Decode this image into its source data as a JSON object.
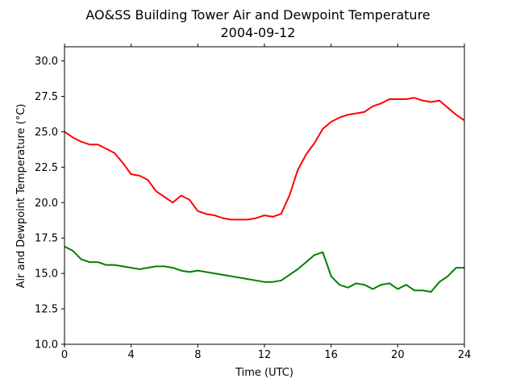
{
  "chart_data": {
    "type": "line",
    "title": "AO&SS Building Tower Air and Dewpoint Temperature",
    "subtitle": "2004-09-12",
    "xlabel": "Time (UTC)",
    "ylabel": "Air and Dewpoint Temperature (°C)",
    "xlim": [
      0,
      24
    ],
    "ylim": [
      10.0,
      31.0
    ],
    "xticks": [
      0,
      4,
      8,
      12,
      16,
      20,
      24
    ],
    "xtick_labels": [
      "0",
      "4",
      "8",
      "12",
      "16",
      "20",
      "24"
    ],
    "yticks": [
      10.0,
      12.5,
      15.0,
      17.5,
      20.0,
      22.5,
      25.0,
      27.5,
      30.0
    ],
    "ytick_labels": [
      "10.0",
      "12.5",
      "15.0",
      "17.5",
      "20.0",
      "22.5",
      "25.0",
      "27.5",
      "30.0"
    ],
    "grid": false,
    "legend": "none",
    "series": [
      {
        "color": "#ff0000",
        "x": [
          0,
          0.5,
          1,
          1.5,
          2,
          2.5,
          3,
          3.5,
          4,
          4.5,
          5,
          5.5,
          6,
          6.5,
          7,
          7.5,
          8,
          8.5,
          9,
          9.5,
          10,
          10.5,
          11,
          11.5,
          12,
          12.5,
          13,
          13.5,
          14,
          14.5,
          15,
          15.5,
          16,
          16.5,
          17,
          17.5,
          18,
          18.5,
          19,
          19.5,
          20,
          20.5,
          21,
          21.5,
          22,
          22.5,
          23,
          23.5,
          24
        ],
        "values": [
          25.0,
          24.6,
          24.3,
          24.1,
          24.1,
          23.8,
          23.5,
          22.8,
          22.0,
          21.9,
          21.6,
          20.8,
          20.4,
          20.0,
          20.5,
          20.2,
          19.4,
          19.2,
          19.1,
          18.9,
          18.8,
          18.8,
          18.8,
          18.9,
          19.1,
          19.0,
          19.2,
          20.5,
          22.3,
          23.4,
          24.2,
          25.2,
          25.7,
          26.0,
          26.2,
          26.3,
          26.4,
          26.8,
          27.0,
          27.3,
          27.3,
          27.3,
          27.4,
          27.2,
          27.1,
          27.2,
          26.7,
          26.2,
          25.8
        ]
      },
      {
        "color": "#008000",
        "x": [
          0,
          0.5,
          1,
          1.5,
          2,
          2.5,
          3,
          3.5,
          4,
          4.5,
          5,
          5.5,
          6,
          6.5,
          7,
          7.5,
          8,
          8.5,
          9,
          9.5,
          10,
          10.5,
          11,
          11.5,
          12,
          12.5,
          13,
          13.5,
          14,
          14.5,
          15,
          15.5,
          15.8,
          16,
          16.5,
          17,
          17.5,
          18,
          18.5,
          19,
          19.5,
          20,
          20.5,
          21,
          21.5,
          22,
          22.5,
          23,
          23.5,
          24
        ],
        "values": [
          16.9,
          16.6,
          16.0,
          15.8,
          15.8,
          15.6,
          15.6,
          15.5,
          15.4,
          15.3,
          15.4,
          15.5,
          15.5,
          15.4,
          15.2,
          15.1,
          15.2,
          15.1,
          15.0,
          14.9,
          14.8,
          14.7,
          14.6,
          14.5,
          14.4,
          14.4,
          14.5,
          14.9,
          15.3,
          15.8,
          16.3,
          16.5,
          15.5,
          14.8,
          14.2,
          14.0,
          14.3,
          14.2,
          13.9,
          14.2,
          14.3,
          13.9,
          14.2,
          13.8,
          13.8,
          13.7,
          14.4,
          14.8,
          15.4,
          15.4
        ]
      }
    ]
  }
}
